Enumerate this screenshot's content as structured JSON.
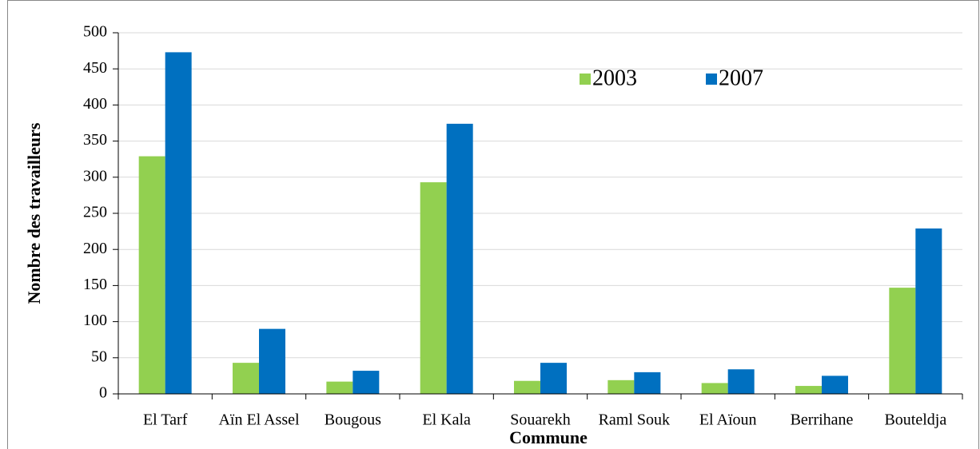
{
  "chart_data": {
    "type": "bar",
    "categories": [
      "El Tarf",
      "Aïn El Assel",
      "Bougous",
      "El Kala",
      "Souarekh",
      "Raml Souk",
      "El Aïoun",
      "Berrihane",
      "Bouteldja"
    ],
    "series": [
      {
        "name": "2003",
        "color": "#92d050",
        "values": [
          329,
          43,
          17,
          293,
          18,
          19,
          15,
          11,
          147
        ]
      },
      {
        "name": "2007",
        "color": "#0070c0",
        "values": [
          473,
          90,
          32,
          374,
          43,
          30,
          34,
          25,
          229
        ]
      }
    ],
    "x_label": "Commune",
    "y_label": "Nombre des travailleurs",
    "ylim": [
      0,
      500
    ],
    "yticks": [
      0,
      50,
      100,
      150,
      200,
      250,
      300,
      350,
      400,
      450,
      500
    ],
    "grid": true,
    "legend": "top-right"
  }
}
